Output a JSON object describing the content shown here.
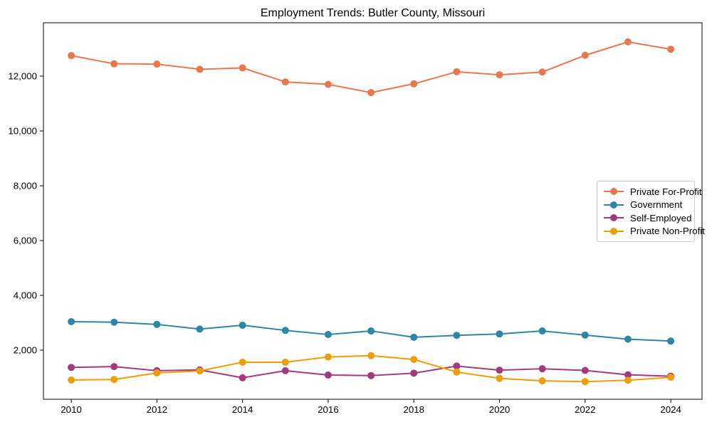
{
  "chart_data": {
    "type": "line",
    "title": "Employment Trends: Butler County, Missouri",
    "xlabel": "",
    "ylabel": "",
    "grid": false,
    "legend_position": "center right",
    "marker": "circle",
    "x": [
      2010,
      2011,
      2012,
      2013,
      2014,
      2015,
      2016,
      2017,
      2018,
      2019,
      2020,
      2021,
      2022,
      2023,
      2024
    ],
    "series": [
      {
        "name": "Private For-Profit",
        "color": "#E8774D",
        "values": [
          12750,
          12450,
          12440,
          12250,
          12300,
          11790,
          11700,
          11400,
          11720,
          12160,
          12050,
          12150,
          12760,
          13250,
          12980
        ]
      },
      {
        "name": "Government",
        "color": "#2F85A6",
        "values": [
          3040,
          3020,
          2940,
          2770,
          2910,
          2720,
          2570,
          2700,
          2470,
          2540,
          2590,
          2700,
          2550,
          2400,
          2330
        ]
      },
      {
        "name": "Self-Employed",
        "color": "#A23A7C",
        "values": [
          1370,
          1400,
          1250,
          1280,
          990,
          1250,
          1090,
          1070,
          1160,
          1420,
          1270,
          1320,
          1260,
          1100,
          1050
        ]
      },
      {
        "name": "Private Non-Profit",
        "color": "#F09D0A",
        "values": [
          910,
          930,
          1170,
          1240,
          1560,
          1560,
          1750,
          1800,
          1660,
          1200,
          970,
          880,
          850,
          900,
          1010
        ]
      }
    ],
    "xlim": [
      2009.35,
      2024.73
    ],
    "ylim": [
      208,
      13948
    ],
    "x_ticks": [
      2010,
      2012,
      2014,
      2016,
      2018,
      2020,
      2022,
      2024
    ],
    "x_tick_labels": [
      "2010",
      "2012",
      "2014",
      "2016",
      "2018",
      "2020",
      "2022",
      "2024"
    ],
    "y_ticks": [
      2000,
      4000,
      6000,
      8000,
      10000,
      12000
    ],
    "y_tick_labels": [
      "2,000",
      "4,000",
      "6,000",
      "8,000",
      "10,000",
      "12,000"
    ],
    "axis_color": "#000000",
    "tick_label_color": "#000000"
  }
}
